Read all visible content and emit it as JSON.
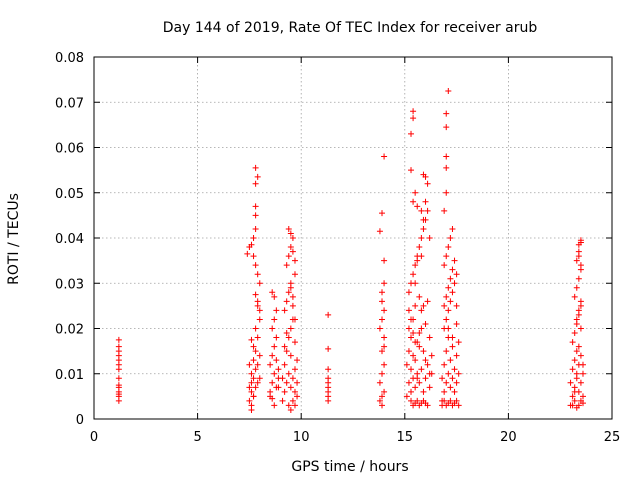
{
  "chart_data": {
    "type": "scatter",
    "title": "Day 144 of 2019, Rate Of TEC Index for receiver arub",
    "xlabel": "GPS time / hours",
    "ylabel": "ROTI / TECUs",
    "xlim": [
      0,
      25
    ],
    "ylim": [
      0,
      0.08
    ],
    "xticks": [
      0,
      5,
      10,
      15,
      20,
      25
    ],
    "yticks": [
      0,
      0.01,
      0.02,
      0.03,
      0.04,
      0.05,
      0.06,
      0.07,
      0.08
    ],
    "xtick_labels": [
      "0",
      "5",
      "10",
      "15",
      "20",
      "25"
    ],
    "ytick_labels": [
      "0",
      "0.01",
      "0.02",
      "0.03",
      "0.04",
      "0.05",
      "0.06",
      "0.07",
      "0.08"
    ],
    "grid": true,
    "marker": "+",
    "color": "#ff0000",
    "series": [
      {
        "x": [
          1.2,
          1.2,
          1.2,
          1.2,
          1.2,
          1.2,
          1.2,
          1.2,
          1.2,
          1.2,
          1.2,
          1.2,
          1.2,
          1.2,
          7.5,
          7.5,
          7.6,
          7.6,
          7.6,
          7.7,
          7.7,
          7.7,
          7.8,
          7.8,
          7.8,
          7.9,
          7.9,
          7.9,
          8.0,
          8.0,
          8.0,
          7.5,
          7.6,
          7.7,
          7.8,
          7.9,
          8.0,
          7.6,
          7.7,
          7.8,
          7.9,
          7.7,
          7.8,
          7.8,
          7.8,
          7.8,
          7.9,
          7.4,
          7.5,
          7.6,
          7.7,
          7.8,
          7.9,
          8.0,
          7.6,
          7.8,
          8.5,
          8.5,
          8.6,
          8.6,
          8.7,
          8.7,
          8.8,
          8.8,
          8.9,
          8.9,
          8.6,
          8.7,
          8.8,
          8.6,
          8.7,
          8.6,
          8.5,
          8.8,
          8.9,
          8.7,
          9.1,
          9.1,
          9.2,
          9.2,
          9.3,
          9.3,
          9.4,
          9.4,
          9.5,
          9.5,
          9.6,
          9.6,
          9.7,
          9.7,
          9.8,
          9.8,
          9.2,
          9.3,
          9.4,
          9.5,
          9.6,
          9.7,
          9.3,
          9.4,
          9.5,
          9.6,
          9.7,
          9.4,
          9.5,
          9.6,
          9.7,
          9.5,
          9.6,
          9.4,
          9.5,
          9.6,
          9.7,
          9.8,
          9.2,
          9.3,
          9.5,
          9.7,
          11.3,
          11.3,
          11.3,
          11.3,
          11.3,
          11.3,
          11.3,
          11.3,
          11.3,
          13.8,
          13.8,
          13.9,
          13.9,
          13.9,
          14.0,
          14.0,
          14.0,
          13.8,
          13.9,
          14.0,
          13.9,
          13.9,
          14.0,
          14.0,
          13.8,
          13.9,
          14.0,
          13.9,
          14.0,
          15.1,
          15.1,
          15.2,
          15.2,
          15.2,
          15.3,
          15.3,
          15.3,
          15.4,
          15.4,
          15.4,
          15.5,
          15.5,
          15.5,
          15.6,
          15.6,
          15.7,
          15.7,
          15.8,
          15.8,
          15.9,
          15.9,
          16.0,
          16.0,
          16.1,
          16.1,
          16.2,
          16.2,
          16.3,
          16.3,
          15.2,
          15.3,
          15.4,
          15.5,
          15.6,
          15.7,
          15.8,
          15.9,
          16.0,
          16.1,
          16.2,
          15.3,
          15.4,
          15.5,
          15.6,
          15.7,
          15.8,
          15.9,
          16.0,
          16.1,
          15.4,
          15.5,
          15.6,
          15.8,
          16.0,
          15.3,
          15.3,
          15.4,
          15.4,
          15.9,
          16.0,
          16.1,
          15.8,
          15.9,
          15.6,
          15.5,
          15.7,
          15.2,
          15.3,
          15.4,
          15.5,
          16.0,
          16.2,
          15.6,
          15.7,
          15.8,
          15.9,
          16.8,
          16.8,
          16.9,
          16.9,
          17.0,
          17.0,
          17.1,
          17.1,
          17.2,
          17.2,
          17.3,
          17.3,
          17.4,
          17.4,
          17.5,
          17.5,
          17.6,
          17.6,
          16.9,
          17.0,
          17.1,
          17.2,
          17.3,
          17.4,
          17.5,
          16.9,
          17.0,
          17.1,
          17.2,
          17.3,
          17.0,
          17.0,
          17.0,
          17.0,
          17.0,
          17.1,
          16.9,
          17.0,
          17.1,
          17.2,
          17.3,
          17.4,
          17.5,
          16.8,
          16.9,
          17.0,
          17.1,
          17.2,
          17.3,
          17.4,
          17.5,
          17.6,
          16.9,
          17.1,
          17.3,
          17.5,
          23.0,
          23.0,
          23.1,
          23.1,
          23.2,
          23.2,
          23.3,
          23.3,
          23.4,
          23.4,
          23.5,
          23.5,
          23.6,
          23.6,
          23.1,
          23.2,
          23.3,
          23.4,
          23.5,
          23.2,
          23.3,
          23.4,
          23.5,
          23.3,
          23.4,
          23.5,
          23.4,
          23.5,
          23.4,
          23.5,
          23.1,
          23.2,
          23.3,
          23.4,
          23.5,
          23.6,
          23.2,
          23.3,
          23.4,
          23.5,
          23.6,
          23.3,
          23.4,
          23.5
        ],
        "y": [
          0.0175,
          0.016,
          0.015,
          0.014,
          0.013,
          0.012,
          0.011,
          0.009,
          0.0075,
          0.007,
          0.006,
          0.0055,
          0.005,
          0.004,
          0.007,
          0.012,
          0.008,
          0.01,
          0.006,
          0.013,
          0.009,
          0.005,
          0.015,
          0.011,
          0.007,
          0.018,
          0.012,
          0.008,
          0.022,
          0.014,
          0.009,
          0.004,
          0.003,
          0.005,
          0.02,
          0.025,
          0.03,
          0.0385,
          0.036,
          0.034,
          0.032,
          0.04,
          0.042,
          0.047,
          0.052,
          0.0555,
          0.0535,
          0.0365,
          0.038,
          0.0175,
          0.016,
          0.0275,
          0.026,
          0.024,
          0.002,
          0.045,
          0.006,
          0.012,
          0.008,
          0.014,
          0.01,
          0.016,
          0.007,
          0.018,
          0.009,
          0.011,
          0.028,
          0.027,
          0.024,
          0.02,
          0.022,
          0.0045,
          0.005,
          0.013,
          0.007,
          0.003,
          0.004,
          0.009,
          0.006,
          0.012,
          0.008,
          0.015,
          0.01,
          0.018,
          0.007,
          0.02,
          0.009,
          0.022,
          0.006,
          0.011,
          0.008,
          0.013,
          0.024,
          0.026,
          0.028,
          0.03,
          0.025,
          0.022,
          0.034,
          0.036,
          0.038,
          0.04,
          0.032,
          0.042,
          0.041,
          0.037,
          0.035,
          0.029,
          0.027,
          0.003,
          0.002,
          0.004,
          0.003,
          0.005,
          0.016,
          0.019,
          0.014,
          0.017,
          0.023,
          0.0155,
          0.011,
          0.009,
          0.008,
          0.007,
          0.006,
          0.005,
          0.004,
          0.004,
          0.008,
          0.005,
          0.01,
          0.015,
          0.006,
          0.012,
          0.018,
          0.02,
          0.022,
          0.024,
          0.026,
          0.028,
          0.03,
          0.035,
          0.0415,
          0.0455,
          0.058,
          0.003,
          0.016,
          0.005,
          0.012,
          0.008,
          0.015,
          0.02,
          0.006,
          0.011,
          0.018,
          0.009,
          0.014,
          0.022,
          0.007,
          0.013,
          0.025,
          0.01,
          0.017,
          0.008,
          0.019,
          0.011,
          0.024,
          0.006,
          0.015,
          0.009,
          0.021,
          0.012,
          0.026,
          0.007,
          0.018,
          0.01,
          0.014,
          0.028,
          0.03,
          0.032,
          0.034,
          0.036,
          0.038,
          0.04,
          0.042,
          0.044,
          0.046,
          0.04,
          0.004,
          0.003,
          0.0035,
          0.004,
          0.003,
          0.0035,
          0.004,
          0.0035,
          0.003,
          0.048,
          0.05,
          0.047,
          0.046,
          0.048,
          0.055,
          0.063,
          0.0665,
          0.068,
          0.054,
          0.0535,
          0.052,
          0.036,
          0.044,
          0.035,
          0.03,
          0.027,
          0.024,
          0.022,
          0.019,
          0.017,
          0.013,
          0.01,
          0.009,
          0.016,
          0.02,
          0.025,
          0.004,
          0.009,
          0.006,
          0.012,
          0.008,
          0.015,
          0.01,
          0.018,
          0.007,
          0.013,
          0.009,
          0.016,
          0.006,
          0.011,
          0.008,
          0.014,
          0.01,
          0.017,
          0.02,
          0.022,
          0.024,
          0.026,
          0.028,
          0.03,
          0.032,
          0.034,
          0.036,
          0.038,
          0.04,
          0.042,
          0.05,
          0.0555,
          0.058,
          0.0645,
          0.0675,
          0.0725,
          0.025,
          0.027,
          0.029,
          0.031,
          0.033,
          0.035,
          0.025,
          0.003,
          0.004,
          0.003,
          0.0035,
          0.004,
          0.003,
          0.0035,
          0.004,
          0.003,
          0.046,
          0.02,
          0.018,
          0.021,
          0.003,
          0.008,
          0.005,
          0.011,
          0.007,
          0.013,
          0.009,
          0.015,
          0.006,
          0.012,
          0.008,
          0.014,
          0.005,
          0.01,
          0.017,
          0.019,
          0.021,
          0.023,
          0.025,
          0.027,
          0.029,
          0.031,
          0.033,
          0.035,
          0.037,
          0.039,
          0.036,
          0.034,
          0.0385,
          0.0395,
          0.003,
          0.004,
          0.0025,
          0.003,
          0.004,
          0.0035,
          0.006,
          0.01,
          0.016,
          0.02,
          0.012,
          0.022,
          0.024,
          0.026
        ]
      }
    ]
  }
}
